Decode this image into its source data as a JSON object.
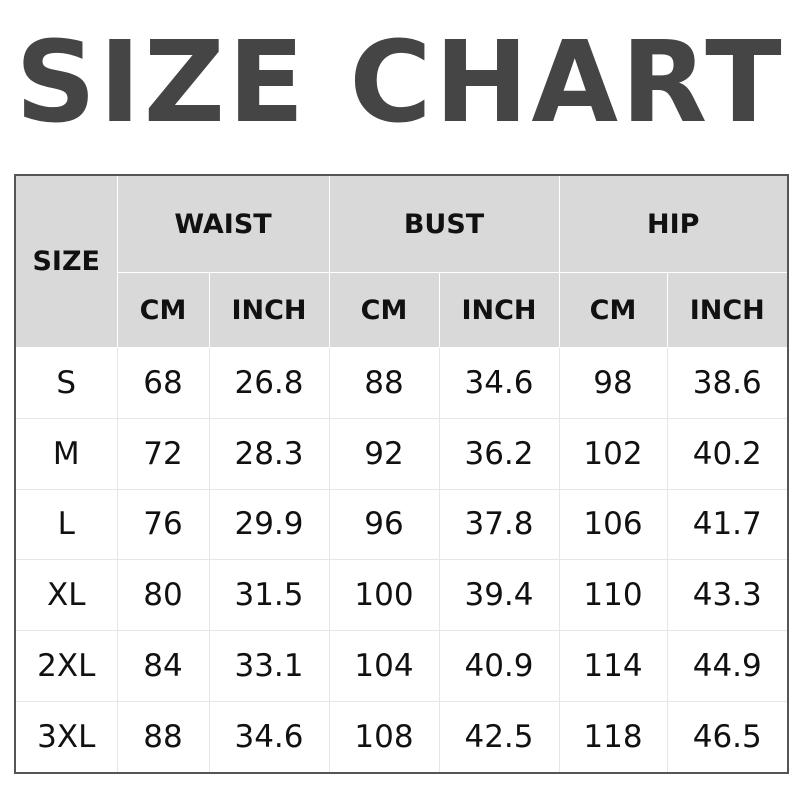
{
  "title": "SIZE CHART",
  "header": {
    "size": "SIZE",
    "groups": [
      "WAIST",
      "BUST",
      "HIP"
    ],
    "units": [
      "CM",
      "INCH",
      "CM",
      "INCH",
      "CM",
      "INCH"
    ]
  },
  "rows": [
    [
      "S",
      "68",
      "26.8",
      "88",
      "34.6",
      "98",
      "38.6"
    ],
    [
      "M",
      "72",
      "28.3",
      "92",
      "36.2",
      "102",
      "40.2"
    ],
    [
      "L",
      "76",
      "29.9",
      "96",
      "37.8",
      "106",
      "41.7"
    ],
    [
      "XL",
      "80",
      "31.5",
      "100",
      "39.4",
      "110",
      "43.3"
    ],
    [
      "2XL",
      "84",
      "33.1",
      "104",
      "40.9",
      "114",
      "44.9"
    ],
    [
      "3XL",
      "88",
      "34.6",
      "108",
      "42.5",
      "118",
      "46.5"
    ]
  ]
}
